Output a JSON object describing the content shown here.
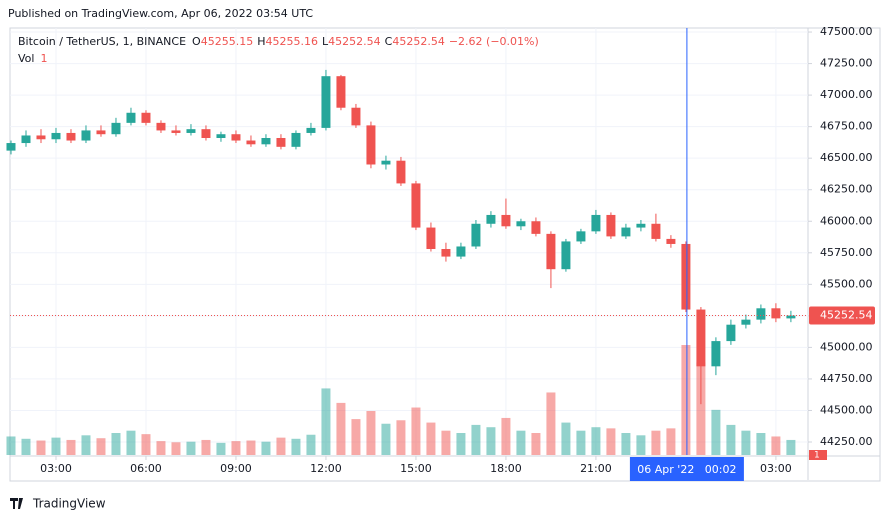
{
  "header": {
    "published": "Published on TradingView.com, Apr 06, 2022 03:54 UTC"
  },
  "footer": {
    "brand": "TradingView"
  },
  "chart_data": {
    "type": "candlestick",
    "legend": {
      "symbol": "Bitcoin / TetherUS, 1, BINANCE",
      "ohlc": [
        {
          "key": "O",
          "value": 45255.15
        },
        {
          "key": "H",
          "value": 45255.16
        },
        {
          "key": "L",
          "value": 45252.54
        },
        {
          "key": "C",
          "value": 45252.54
        }
      ],
      "change": "−2.62 (−0.01%)",
      "volume_name": "Vol",
      "volume_value": 1
    },
    "x": [
      1.5,
      2,
      2.5,
      3,
      3.5,
      4,
      4.5,
      5,
      5.5,
      6,
      6.5,
      7,
      7.5,
      8,
      8.5,
      9,
      9.5,
      10,
      10.5,
      11,
      11.5,
      12,
      12.5,
      13,
      13.5,
      14,
      14.5,
      15,
      15.5,
      16,
      16.5,
      17,
      17.5,
      18,
      18.5,
      19,
      19.5,
      20,
      20.5,
      21,
      21.5,
      22,
      22.5,
      23,
      23.5,
      24,
      24.5,
      25,
      25.5,
      26,
      26.5,
      27,
      27.5
    ],
    "open": [
      46560,
      46620,
      46680,
      46650,
      46700,
      46640,
      46720,
      46690,
      46780,
      46860,
      46780,
      46720,
      46700,
      46730,
      46660,
      46690,
      46640,
      46610,
      46660,
      46590,
      46700,
      46740,
      47150,
      46900,
      46760,
      46450,
      46480,
      46300,
      45950,
      45780,
      45720,
      45800,
      45980,
      46050,
      45960,
      46000,
      45900,
      45620,
      45840,
      45920,
      46050,
      45880,
      45950,
      45980,
      45860,
      45820,
      45300,
      44850,
      45050,
      45180,
      45220,
      45310,
      45230
    ],
    "high": [
      46640,
      46720,
      46730,
      46740,
      46730,
      46760,
      46760,
      46820,
      46900,
      46880,
      46800,
      46760,
      46770,
      46760,
      46710,
      46720,
      46680,
      46690,
      46690,
      46720,
      46780,
      47200,
      47160,
      46930,
      46790,
      46520,
      46510,
      46320,
      45990,
      45830,
      45830,
      46010,
      46080,
      46180,
      46020,
      46030,
      45920,
      45860,
      45940,
      46090,
      46070,
      45980,
      46010,
      46060,
      45890,
      45840,
      45320,
      45080,
      45220,
      45260,
      45340,
      45350,
      45290
    ],
    "low": [
      46530,
      46590,
      46620,
      46620,
      46620,
      46620,
      46670,
      46670,
      46760,
      46760,
      46700,
      46680,
      46680,
      46640,
      46630,
      46620,
      46590,
      46590,
      46570,
      46570,
      46680,
      46720,
      46880,
      46740,
      46420,
      46410,
      46280,
      45930,
      45760,
      45680,
      45700,
      45780,
      45950,
      45940,
      45930,
      45880,
      45470,
      45600,
      45820,
      45900,
      45860,
      45860,
      45920,
      45840,
      45790,
      45280,
      44550,
      44780,
      45020,
      45150,
      45190,
      45200,
      45200
    ],
    "close": [
      46620,
      46680,
      46650,
      46700,
      46640,
      46720,
      46690,
      46780,
      46860,
      46780,
      46720,
      46700,
      46730,
      46660,
      46690,
      46640,
      46610,
      46660,
      46590,
      46700,
      46740,
      47150,
      46900,
      46760,
      46450,
      46480,
      46300,
      45950,
      45780,
      45720,
      45800,
      45980,
      46050,
      45960,
      46000,
      45900,
      45620,
      45840,
      45920,
      46050,
      45880,
      45950,
      45980,
      45860,
      45820,
      45300,
      44850,
      45050,
      45180,
      45220,
      45310,
      45230,
      45252.54
    ],
    "volume": [
      320,
      280,
      250,
      300,
      260,
      340,
      290,
      380,
      420,
      360,
      240,
      220,
      230,
      260,
      210,
      240,
      250,
      230,
      300,
      280,
      350,
      1150,
      900,
      620,
      760,
      540,
      600,
      820,
      560,
      420,
      380,
      520,
      480,
      640,
      420,
      380,
      1080,
      560,
      420,
      480,
      460,
      380,
      340,
      420,
      460,
      1900,
      1600,
      780,
      520,
      420,
      380,
      320,
      260
    ],
    "up_color": "#26a69a",
    "down_color": "#ef5350",
    "last_price": {
      "value": 45252.54,
      "label": "45252.54"
    },
    "volume_last": 1,
    "crosshair": {
      "x": 24.033,
      "label": "06 Apr '22   00:02"
    },
    "xlim": [
      1.467,
      28.07
    ],
    "ylim": [
      44147,
      47532
    ],
    "xticks": [
      {
        "value": 3,
        "label": "03:00"
      },
      {
        "value": 6,
        "label": "06:00"
      },
      {
        "value": 9,
        "label": "09:00"
      },
      {
        "value": 12,
        "label": "12:00"
      },
      {
        "value": 15,
        "label": "15:00"
      },
      {
        "value": 18,
        "label": "18:00"
      },
      {
        "value": 21,
        "label": "21:00"
      },
      {
        "value": 27,
        "label": "03:00"
      }
    ],
    "yticks": [
      {
        "value": 44250,
        "label": "44250.00"
      },
      {
        "value": 44500,
        "label": "44500.00"
      },
      {
        "value": 44750,
        "label": "44750.00"
      },
      {
        "value": 45000,
        "label": "45000.00"
      },
      {
        "value": 45250,
        "label": "45250.00"
      },
      {
        "value": 45500,
        "label": "45500.00"
      },
      {
        "value": 45750,
        "label": "45750.00"
      },
      {
        "value": 46000,
        "label": "46000.00"
      },
      {
        "value": 46250,
        "label": "46250.00"
      },
      {
        "value": 46500,
        "label": "46500.00"
      },
      {
        "value": 46750,
        "label": "46750.00"
      },
      {
        "value": 47000,
        "label": "47000.00"
      },
      {
        "value": 47250,
        "label": "47250.00"
      },
      {
        "value": 47500,
        "label": "47500.00"
      }
    ],
    "grid": true
  }
}
